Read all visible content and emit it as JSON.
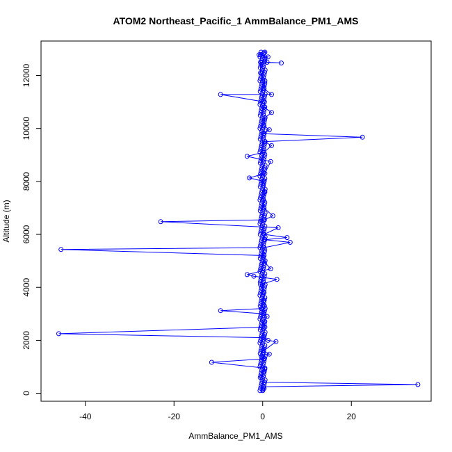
{
  "chart_data": {
    "type": "line",
    "title": "ATOM2 Northeast_Pacific_1 AmmBalance_PM1_AMS",
    "xlabel": "AmmBalance_PM1_AMS",
    "ylabel": "Altitude (m)",
    "xlim": [
      -50,
      38
    ],
    "ylim": [
      -300,
      13300
    ],
    "x_ticks": [
      -40,
      -20,
      0,
      20
    ],
    "y_ticks": [
      0,
      2000,
      4000,
      6000,
      8000,
      10000,
      12000
    ],
    "x_tick_labels": [
      "-40",
      "-20",
      "0",
      "20"
    ],
    "y_tick_labels": [
      "0",
      "2000",
      "4000",
      "6000",
      "8000",
      "10000",
      "12000"
    ],
    "grid": false,
    "legend": "none",
    "series": [
      {
        "color": "#0000ff",
        "marker": "open-circle",
        "points": [
          [
            0.0,
            100
          ],
          [
            0.3,
            180
          ],
          [
            0.1,
            250
          ],
          [
            35.0,
            330
          ],
          [
            0.4,
            420
          ],
          [
            -0.2,
            600
          ],
          [
            0.2,
            800
          ],
          [
            0.5,
            950
          ],
          [
            -11.5,
            1170
          ],
          [
            0.3,
            1300
          ],
          [
            -0.3,
            1400
          ],
          [
            1.5,
            1480
          ],
          [
            0.2,
            1600
          ],
          [
            3.0,
            1950
          ],
          [
            1.2,
            2000
          ],
          [
            0.2,
            2100
          ],
          [
            -46.0,
            2250
          ],
          [
            0.5,
            2500
          ],
          [
            0.3,
            2700
          ],
          [
            1.0,
            2900
          ],
          [
            0.2,
            3000
          ],
          [
            -9.5,
            3120
          ],
          [
            -0.3,
            3200
          ],
          [
            0.4,
            3300
          ],
          [
            0.2,
            3500
          ],
          [
            0.3,
            3800
          ],
          [
            -0.5,
            4100
          ],
          [
            3.2,
            4300
          ],
          [
            -2.0,
            4420
          ],
          [
            -3.5,
            4480
          ],
          [
            1.8,
            4700
          ],
          [
            0.2,
            5000
          ],
          [
            0.3,
            5200
          ],
          [
            -45.5,
            5430
          ],
          [
            0.3,
            5500
          ],
          [
            6.2,
            5700
          ],
          [
            0.5,
            5800
          ],
          [
            5.5,
            5880
          ],
          [
            0.3,
            6000
          ],
          [
            3.5,
            6250
          ],
          [
            -23.0,
            6480
          ],
          [
            0.4,
            6550
          ],
          [
            2.3,
            6700
          ],
          [
            0.3,
            7000
          ],
          [
            0.2,
            7300
          ],
          [
            0.5,
            7600
          ],
          [
            0.3,
            8000
          ],
          [
            -3.0,
            8130
          ],
          [
            0.5,
            8300
          ],
          [
            1.8,
            8750
          ],
          [
            -3.5,
            8950
          ],
          [
            0.3,
            9100
          ],
          [
            2.0,
            9350
          ],
          [
            0.4,
            9500
          ],
          [
            22.5,
            9670
          ],
          [
            0.2,
            9800
          ],
          [
            1.5,
            9950
          ],
          [
            0.3,
            10100
          ],
          [
            0.5,
            10400
          ],
          [
            2.0,
            10600
          ],
          [
            0.3,
            10800
          ],
          [
            0.4,
            11000
          ],
          [
            -9.5,
            11280
          ],
          [
            2.0,
            11280
          ],
          [
            0.3,
            11500
          ],
          [
            0.5,
            11800
          ],
          [
            -0.5,
            12100
          ],
          [
            -0.5,
            12500
          ],
          [
            4.2,
            12470
          ],
          [
            1.0,
            12500
          ],
          [
            0.5,
            12650
          ],
          [
            1.2,
            12700
          ],
          [
            -0.8,
            12780
          ],
          [
            0.3,
            12850
          ],
          [
            0.5,
            12880
          ]
        ]
      }
    ]
  }
}
